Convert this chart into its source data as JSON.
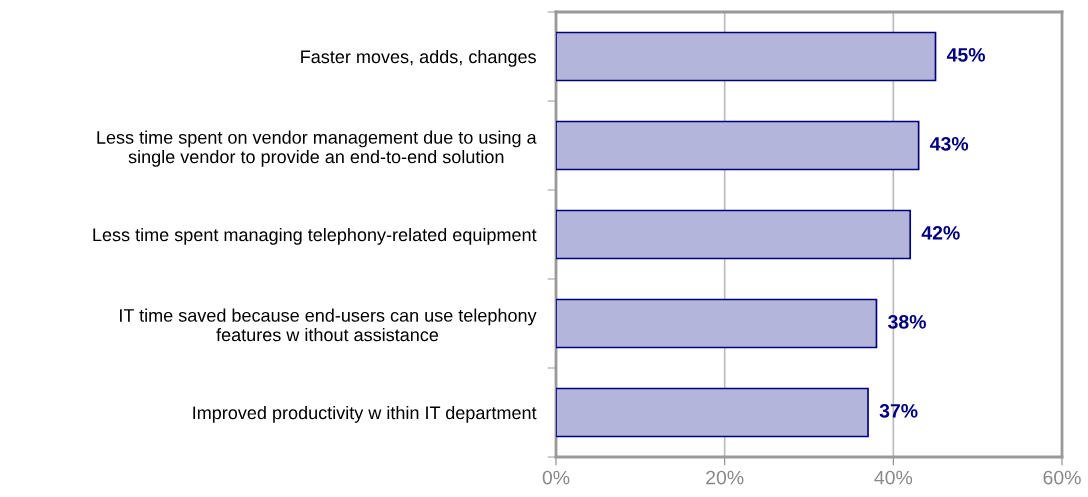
{
  "chart_data": {
    "type": "bar",
    "orientation": "horizontal",
    "categories": [
      "Faster moves, adds, changes",
      "Less time spent on vendor management due to using a\nsingle vendor to provide an end-to-end solution",
      "Less time spent managing telephony-related equipment",
      "IT time saved because end-users can use telephony\nfeatures w ithout assistance",
      "Improved productivity w ithin IT department"
    ],
    "values": [
      45,
      43,
      42,
      38,
      37
    ],
    "value_labels": [
      "45%",
      "43%",
      "42%",
      "38%",
      "37%"
    ],
    "color": "#b3b6da",
    "xlim": [
      0,
      60
    ],
    "xticks": [
      {
        "value": 0,
        "label": "0%"
      },
      {
        "value": 20,
        "label": "20%"
      },
      {
        "value": 40,
        "label": "40%"
      },
      {
        "value": 60,
        "label": "60%"
      }
    ],
    "grid": "x",
    "legend": false
  }
}
